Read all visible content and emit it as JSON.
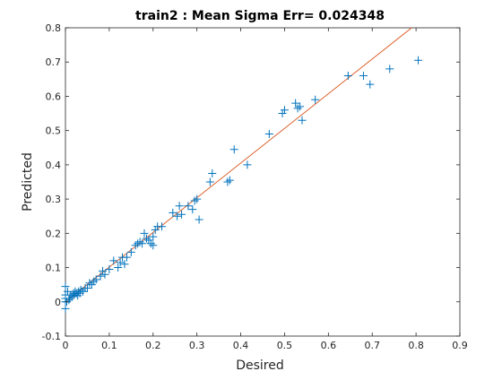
{
  "chart_data": {
    "type": "scatter",
    "title": "train2 :  Mean Sigma Err= 0.024348",
    "xlabel": "Desired",
    "ylabel": "Predicted",
    "xlim": [
      0,
      0.9
    ],
    "ylim": [
      -0.1,
      0.8
    ],
    "xticks": [
      0,
      0.1,
      0.2,
      0.3,
      0.4,
      0.5,
      0.6,
      0.7,
      0.8,
      0.9
    ],
    "xtick_labels": [
      "0",
      "0.1",
      "0.2",
      "0.3",
      "0.4",
      "0.5",
      "0.6",
      "0.7",
      "0.8",
      "0.9"
    ],
    "yticks": [
      -0.1,
      0,
      0.1,
      0.2,
      0.3,
      0.4,
      0.5,
      0.6,
      0.7,
      0.8
    ],
    "ytick_labels": [
      "-0.1",
      "0",
      "0.1",
      "0.2",
      "0.3",
      "0.4",
      "0.5",
      "0.6",
      "0.7",
      "0.8"
    ],
    "grid": false,
    "marker": "+",
    "colors": {
      "points": "#0072bd",
      "fit_line": "#d95319",
      "axes": "#262626"
    },
    "series": [
      {
        "type": "scatter",
        "points": [
          [
            0.0,
            -0.02
          ],
          [
            0.0,
            0.0
          ],
          [
            0.0,
            0.01
          ],
          [
            0.0,
            0.02
          ],
          [
            0.0,
            0.045
          ],
          [
            0.003,
            0.0
          ],
          [
            0.005,
            0.03
          ],
          [
            0.008,
            0.005
          ],
          [
            0.01,
            0.01
          ],
          [
            0.012,
            0.02
          ],
          [
            0.015,
            0.015
          ],
          [
            0.018,
            0.025
          ],
          [
            0.02,
            0.02
          ],
          [
            0.022,
            0.03
          ],
          [
            0.025,
            0.025
          ],
          [
            0.028,
            0.018
          ],
          [
            0.03,
            0.03
          ],
          [
            0.033,
            0.025
          ],
          [
            0.035,
            0.035
          ],
          [
            0.04,
            0.03
          ],
          [
            0.045,
            0.04
          ],
          [
            0.05,
            0.04
          ],
          [
            0.055,
            0.055
          ],
          [
            0.06,
            0.05
          ],
          [
            0.065,
            0.06
          ],
          [
            0.07,
            0.065
          ],
          [
            0.08,
            0.075
          ],
          [
            0.085,
            0.09
          ],
          [
            0.09,
            0.08
          ],
          [
            0.1,
            0.095
          ],
          [
            0.11,
            0.12
          ],
          [
            0.12,
            0.1
          ],
          [
            0.125,
            0.115
          ],
          [
            0.13,
            0.13
          ],
          [
            0.135,
            0.11
          ],
          [
            0.14,
            0.13
          ],
          [
            0.15,
            0.145
          ],
          [
            0.16,
            0.165
          ],
          [
            0.165,
            0.17
          ],
          [
            0.17,
            0.175
          ],
          [
            0.175,
            0.17
          ],
          [
            0.18,
            0.2
          ],
          [
            0.185,
            0.185
          ],
          [
            0.19,
            0.18
          ],
          [
            0.195,
            0.17
          ],
          [
            0.2,
            0.19
          ],
          [
            0.2,
            0.165
          ],
          [
            0.205,
            0.21
          ],
          [
            0.21,
            0.22
          ],
          [
            0.22,
            0.22
          ],
          [
            0.245,
            0.26
          ],
          [
            0.255,
            0.25
          ],
          [
            0.26,
            0.28
          ],
          [
            0.265,
            0.255
          ],
          [
            0.28,
            0.28
          ],
          [
            0.29,
            0.27
          ],
          [
            0.295,
            0.295
          ],
          [
            0.3,
            0.3
          ],
          [
            0.305,
            0.24
          ],
          [
            0.33,
            0.35
          ],
          [
            0.335,
            0.375
          ],
          [
            0.37,
            0.35
          ],
          [
            0.375,
            0.355
          ],
          [
            0.385,
            0.445
          ],
          [
            0.415,
            0.4
          ],
          [
            0.465,
            0.49
          ],
          [
            0.495,
            0.55
          ],
          [
            0.5,
            0.56
          ],
          [
            0.525,
            0.58
          ],
          [
            0.53,
            0.565
          ],
          [
            0.535,
            0.57
          ],
          [
            0.54,
            0.53
          ],
          [
            0.57,
            0.59
          ],
          [
            0.645,
            0.66
          ],
          [
            0.68,
            0.66
          ],
          [
            0.695,
            0.635
          ],
          [
            0.74,
            0.68
          ],
          [
            0.805,
            0.705
          ]
        ]
      },
      {
        "type": "line",
        "points": [
          [
            0.0,
            0.0
          ],
          [
            0.79,
            0.8
          ]
        ]
      }
    ]
  }
}
